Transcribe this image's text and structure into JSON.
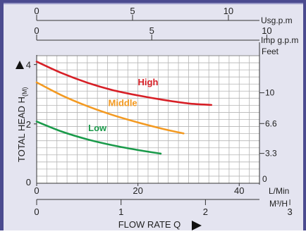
{
  "chart_data": {
    "type": "line",
    "colors": {
      "frame": "#4b4b8f",
      "background": "#e4e4f0",
      "plot_background": "#ffffff",
      "grid": "#b5b5b5",
      "axis": "#333333",
      "high": "#d71f26",
      "middle": "#f39a22",
      "low": "#1a9a4a"
    },
    "x_axis": {
      "label": "L/Min",
      "range": [
        0,
        44
      ],
      "ticks": [
        0,
        20,
        40
      ],
      "tick_labels": [
        "0",
        "20",
        "40"
      ]
    },
    "y_axis": {
      "label": "TOTAL HEAD H",
      "label_sub": "(M)",
      "range": [
        0,
        4.3
      ],
      "ticks": [
        2,
        4
      ],
      "tick_labels": [
        "2",
        "4"
      ],
      "origin_label": "0"
    },
    "secondary_axes": {
      "usgpm": {
        "label": "Usg.p.m",
        "range": [
          0,
          11.62
        ],
        "ticks": [
          0,
          5,
          10
        ],
        "tick_labels": [
          "0",
          "5",
          "10"
        ]
      },
      "impgpm": {
        "label": "Imp g.p.m",
        "range": [
          0,
          9.68
        ],
        "ticks": [
          0,
          5,
          10
        ],
        "tick_labels": [
          "0",
          "5",
          "10"
        ]
      },
      "feet": {
        "label": "Feet",
        "range": [
          0,
          14.1
        ],
        "ticks": [
          0,
          3.3,
          6.6,
          10
        ],
        "tick_labels": [
          "0",
          "3.3",
          "6.6",
          "10"
        ]
      },
      "m3h": {
        "label": "M³/H",
        "range": [
          0,
          2.64
        ],
        "ticks": [
          0,
          1,
          2,
          3
        ],
        "tick_labels": [
          "0",
          "1",
          "2",
          "3"
        ]
      },
      "flow_rate": {
        "label": "FLOW RATE Q"
      }
    },
    "series": [
      {
        "name": "High",
        "x": [
          0,
          5,
          10,
          15,
          20,
          25,
          30,
          34.5
        ],
        "y": [
          4.1,
          3.71,
          3.39,
          3.14,
          2.96,
          2.81,
          2.69,
          2.64
        ]
      },
      {
        "name": "Middle",
        "x": [
          0,
          5,
          10,
          15,
          20,
          25,
          29
        ],
        "y": [
          3.4,
          2.96,
          2.6,
          2.3,
          2.05,
          1.83,
          1.68
        ]
      },
      {
        "name": "Low",
        "x": [
          0,
          5,
          10,
          15,
          20,
          24.5
        ],
        "y": [
          2.08,
          1.74,
          1.48,
          1.28,
          1.12,
          1.0
        ]
      }
    ],
    "grid": true
  }
}
